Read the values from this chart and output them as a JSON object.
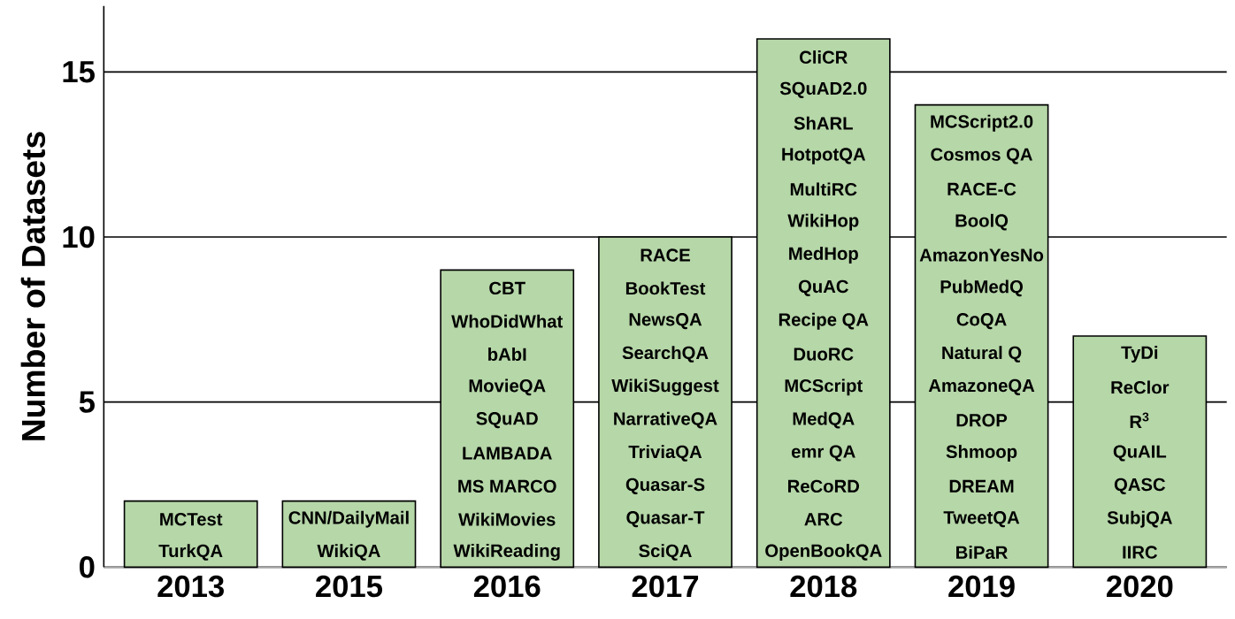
{
  "chart_data": {
    "type": "bar",
    "ylabel": "Number of Datasets",
    "categories": [
      "2013",
      "2015",
      "2016",
      "2017",
      "2018",
      "2019",
      "2020"
    ],
    "values": [
      2,
      2,
      9,
      10,
      16,
      14,
      7
    ],
    "color": "#b6d7a8",
    "ylim": [
      0,
      17
    ],
    "yticks": [
      0,
      5,
      10,
      15
    ],
    "grid": "y",
    "annotations": [
      "MCTest",
      "TurkQA",
      "CNN/DailyMail",
      "WikiQA",
      "CBT",
      "WhoDidWhat",
      "bAbI",
      "MovieQA",
      "SQuAD",
      "LAMBADA",
      "MS MARCO",
      "WikiMovies",
      "WikiReading",
      "RACE",
      "BookTest",
      "NewsQA",
      "SearchQA",
      "WikiSuggest",
      "NarrativeQA",
      "TriviaQA",
      "Quasar-S",
      "Quasar-T",
      "SciQA",
      "CliCR",
      "SQuAD2.0",
      "ShARL",
      "HotpotQA",
      "MultiRC",
      "WikiHop",
      "MedHop",
      "QuAC",
      "Recipe QA",
      "DuoRC",
      "MCScript",
      "MedQA",
      "emr QA",
      "ReCoRD",
      "ARC",
      "OpenBookQA",
      "MCScript2.0",
      "Cosmos QA",
      "RACE-C",
      "BoolQ",
      "AmazonYesNo",
      "PubMedQ",
      "CoQA",
      "Natural Q",
      "AmazoneQA",
      "DROP",
      "Shmoop",
      "DREAM",
      "TweetQA",
      "BiPaR",
      "TyDi",
      "ReClor",
      "R$^{3}$",
      "QuAIL",
      "QASC",
      "SubjQA",
      "IIRC"
    ]
  }
}
